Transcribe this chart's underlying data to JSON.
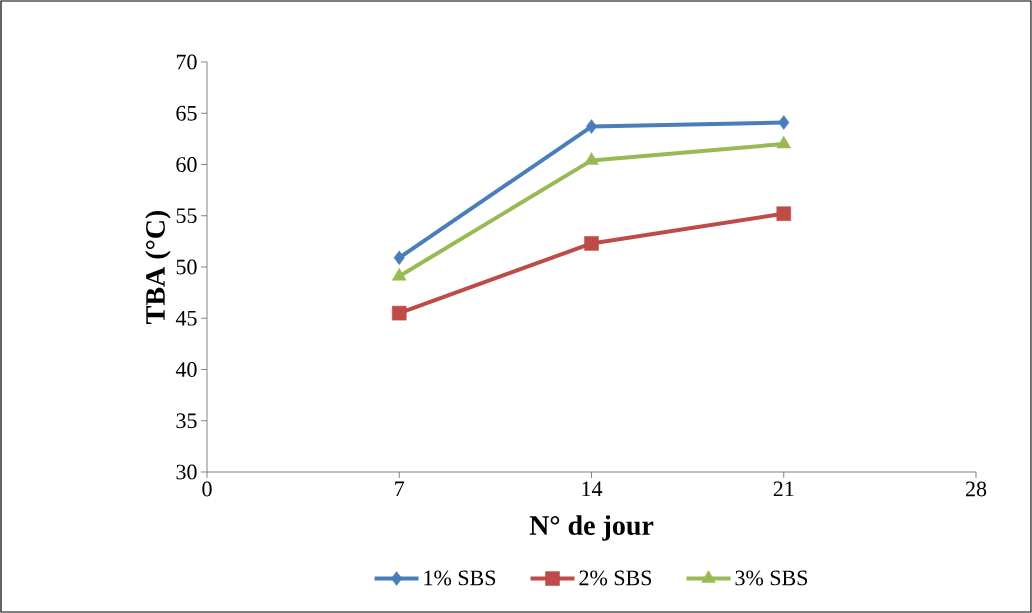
{
  "chart_data": {
    "type": "line",
    "xlabel": "N° de jour",
    "ylabel": "TBA (°C)",
    "x": [
      7,
      14,
      21
    ],
    "series": [
      {
        "name": "1% SBS",
        "color": "#4a7ebb",
        "marker": "diamond",
        "values": [
          50.9,
          63.7,
          64.1
        ]
      },
      {
        "name": "2% SBS",
        "color": "#be4b48",
        "marker": "square",
        "values": [
          45.5,
          52.3,
          55.2
        ]
      },
      {
        "name": "3% SBS",
        "color": "#98b954",
        "marker": "triangle",
        "values": [
          49.1,
          60.4,
          62.0
        ]
      }
    ],
    "xlim": [
      0,
      28
    ],
    "xticks": [
      0,
      7,
      14,
      21,
      28
    ],
    "ylim": [
      30,
      70
    ],
    "yticks": [
      30,
      35,
      40,
      45,
      50,
      55,
      60,
      65,
      70
    ],
    "grid": false,
    "legend": "bottom",
    "line_style": "solid"
  }
}
